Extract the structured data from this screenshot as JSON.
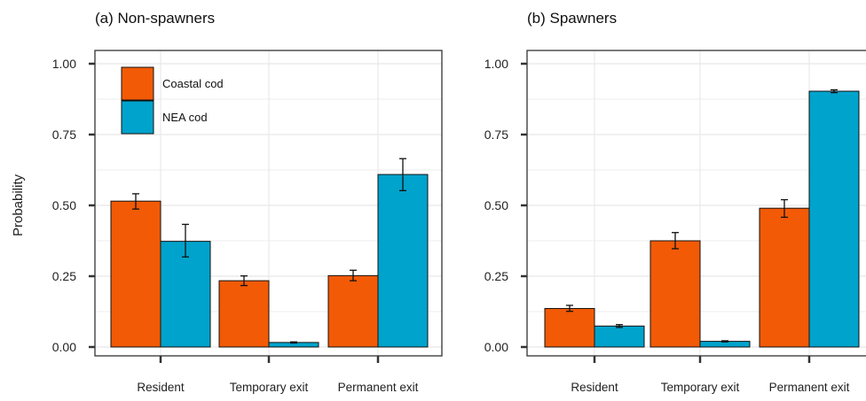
{
  "colors": {
    "coastal": "#f25a06",
    "nea": "#00a3cc",
    "grid": "#e8e8e8",
    "frame": "#333333"
  },
  "ylabel": "Probability",
  "ytick_labels": [
    "0.00",
    "0.25",
    "0.50",
    "0.75",
    "1.00"
  ],
  "legend": [
    "Coastal cod",
    "NEA cod"
  ],
  "chart_data": [
    {
      "type": "bar",
      "title": "(a) Non-spawners",
      "categories": [
        "Resident",
        "Temporary exit",
        "Permanent exit"
      ],
      "ylabel": "Probability",
      "ylim": [
        0,
        1
      ],
      "grid": true,
      "legend_position": "top-left",
      "series": [
        {
          "name": "Coastal cod",
          "color": "#f25a06",
          "values": [
            0.515,
            0.234,
            0.252
          ],
          "err_low": [
            0.487,
            0.217,
            0.234
          ],
          "err_high": [
            0.541,
            0.251,
            0.271
          ]
        },
        {
          "name": "NEA cod",
          "color": "#00a3cc",
          "values": [
            0.373,
            0.016,
            0.609
          ],
          "err_low": [
            0.318,
            0.014,
            0.552
          ],
          "err_high": [
            0.433,
            0.018,
            0.665
          ]
        }
      ]
    },
    {
      "type": "bar",
      "title": "(b) Spawners",
      "categories": [
        "Resident",
        "Temporary exit",
        "Permanent exit"
      ],
      "ylabel": "",
      "ylim": [
        0,
        1
      ],
      "grid": true,
      "series": [
        {
          "name": "Coastal cod",
          "color": "#f25a06",
          "values": [
            0.136,
            0.375,
            0.49
          ],
          "err_low": [
            0.126,
            0.347,
            0.458
          ],
          "err_high": [
            0.147,
            0.404,
            0.52
          ]
        },
        {
          "name": "NEA cod",
          "color": "#00a3cc",
          "values": [
            0.074,
            0.02,
            0.903
          ],
          "err_low": [
            0.069,
            0.018,
            0.898
          ],
          "err_high": [
            0.079,
            0.022,
            0.908
          ]
        }
      ]
    }
  ]
}
